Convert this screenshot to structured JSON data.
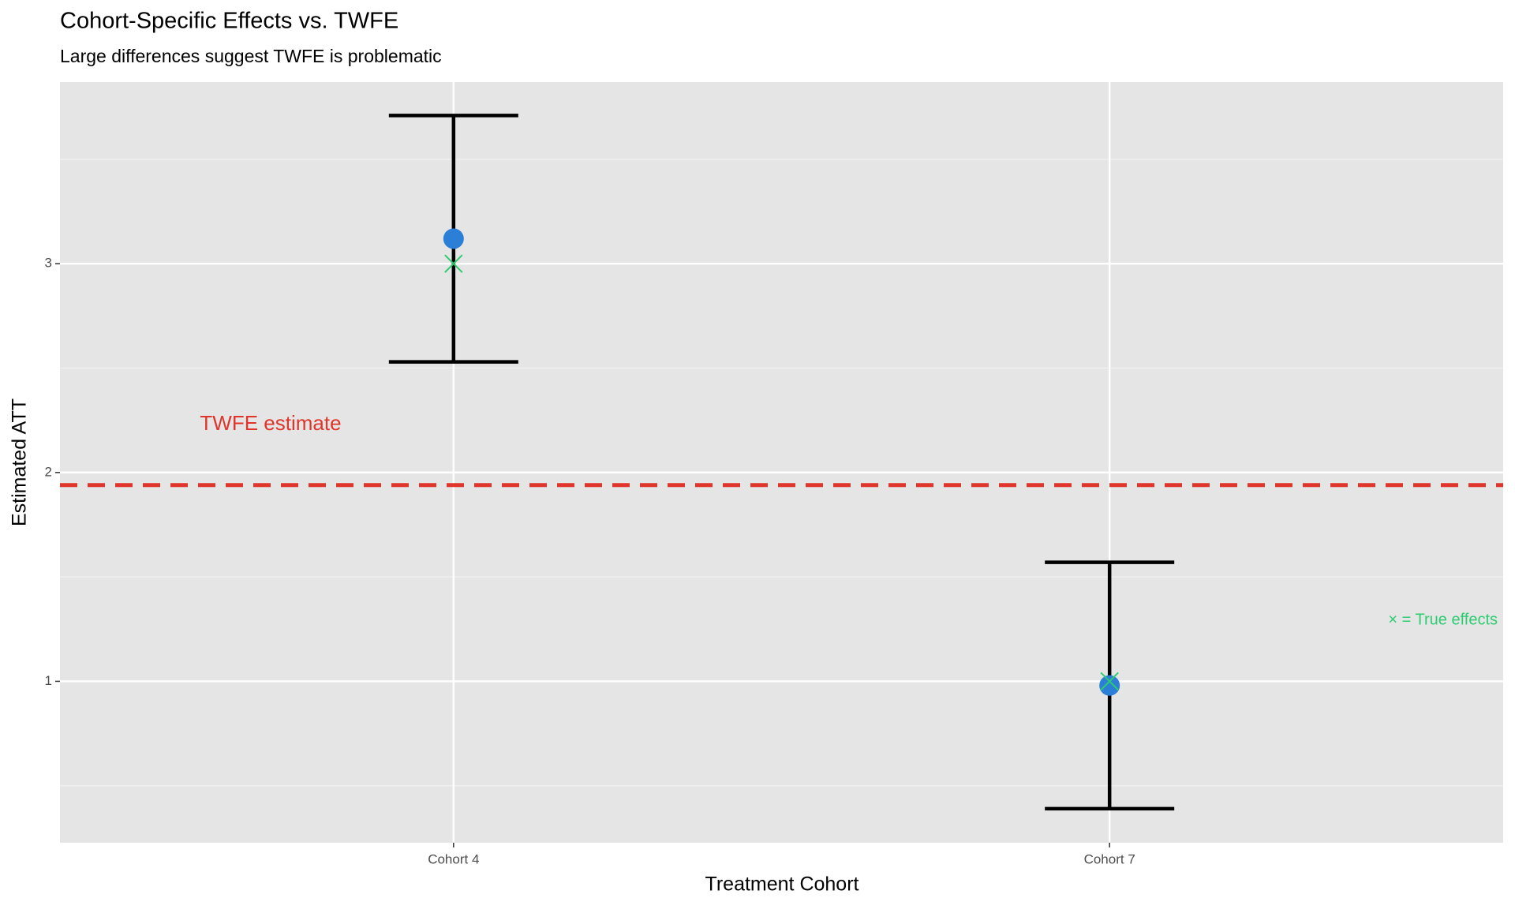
{
  "chart_data": {
    "type": "errorbar",
    "title": "Cohort-Specific Effects vs. TWFE",
    "subtitle": "Large differences suggest TWFE is problematic",
    "x_label": "Treatment Cohort",
    "y_label": "Estimated ATT",
    "categories": [
      "Cohort 4",
      "Cohort 7"
    ],
    "values": [
      3.12,
      0.98
    ],
    "ci_lower": [
      2.53,
      0.39
    ],
    "ci_upper": [
      3.71,
      1.57
    ],
    "true_effects": [
      3.0,
      1.0
    ],
    "twfe_estimate": 1.94,
    "point_color": "#2b7fd6",
    "errorbar_color": "#000000",
    "true_color": "#2ecc71",
    "twfe_color": "#e0352b",
    "ylim": [
      0.227,
      3.87
    ],
    "yticks": [
      1,
      2,
      3
    ],
    "yminor": [
      0.5,
      1.5,
      2.5,
      3.5
    ],
    "annotations": [
      {
        "text": "TWFE estimate",
        "color": "#e0352b"
      },
      {
        "text": "× = True effects",
        "color": "#2ecc71"
      }
    ],
    "grid": true
  }
}
